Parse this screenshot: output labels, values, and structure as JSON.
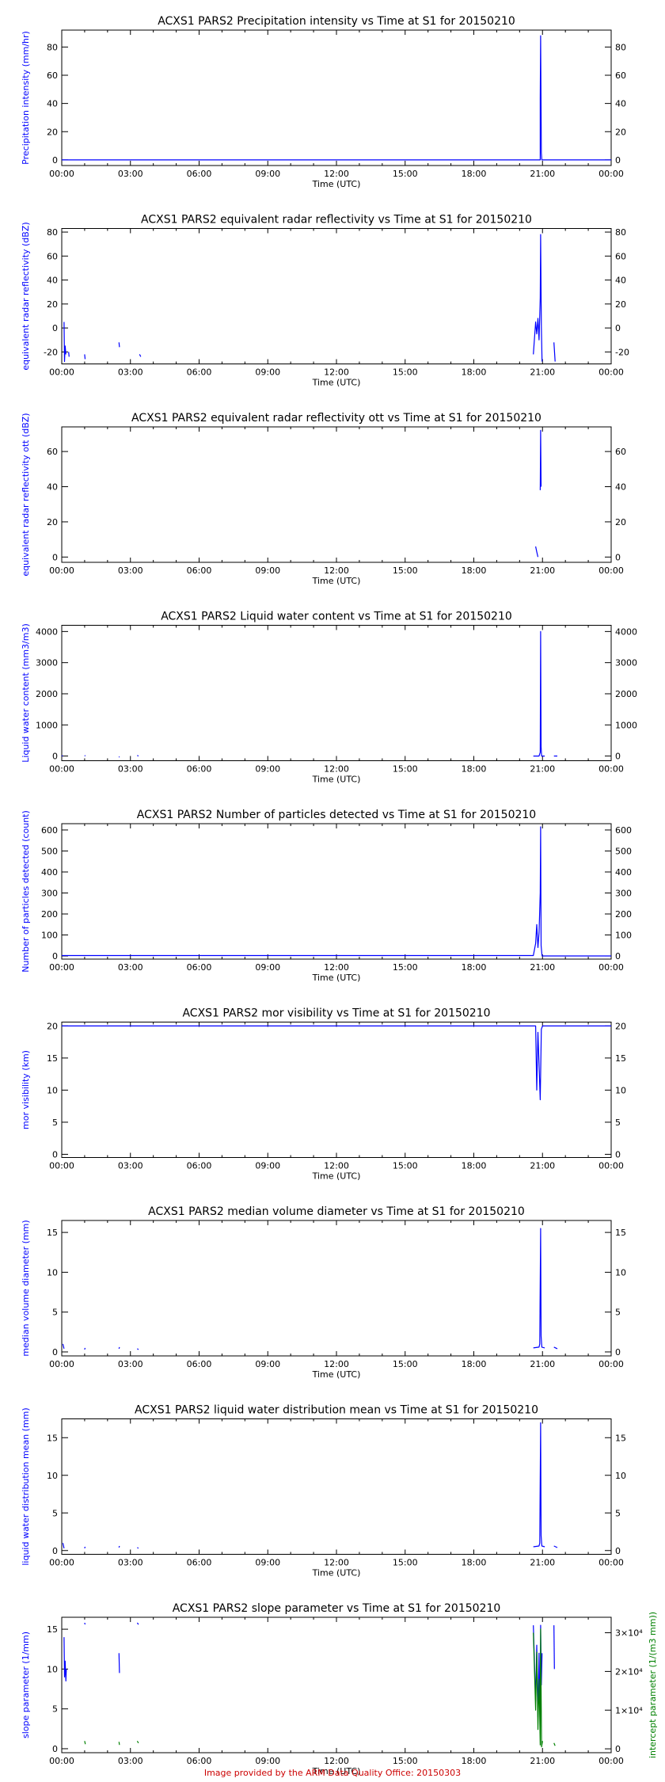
{
  "footer": "Image provided by the ARM Data Quality Office: 20150303",
  "colors": {
    "primary": "#0000ff",
    "secondary": "#008000",
    "footer": "#cc0000",
    "axis": "#000000"
  },
  "chart_data": [
    {
      "type": "line",
      "title": "ACXS1 PARS2 Precipitation intensity vs Time at S1 for 20150210",
      "xlabel": "Time (UTC)",
      "ylabel": "Precipitation intensity (mm/hr)",
      "xlim": [
        0,
        24
      ],
      "ylim": [
        -4,
        92
      ],
      "xticks": [
        "00:00",
        "03:00",
        "06:00",
        "09:00",
        "12:00",
        "15:00",
        "18:00",
        "21:00",
        "00:00"
      ],
      "yticks": [
        0,
        20,
        40,
        60,
        80
      ],
      "series": [
        {
          "segments": [
            [
              [
                0,
                0
              ],
              [
                20.8,
                0
              ],
              [
                20.9,
                0
              ],
              [
                20.9,
                44
              ],
              [
                20.92,
                88
              ],
              [
                20.95,
                5
              ],
              [
                20.97,
                0
              ],
              [
                24,
                0
              ]
            ]
          ]
        }
      ]
    },
    {
      "type": "line",
      "title": "ACXS1 PARS2 equivalent radar reflectivity vs Time at S1 for 20150210",
      "xlabel": "Time (UTC)",
      "ylabel": "equivalent radar reflectivity (dBZ)",
      "xlim": [
        0,
        24
      ],
      "ylim": [
        -30,
        83
      ],
      "xticks": [
        "00:00",
        "03:00",
        "06:00",
        "09:00",
        "12:00",
        "15:00",
        "18:00",
        "21:00",
        "00:00"
      ],
      "yticks": [
        -20,
        0,
        20,
        40,
        60,
        80
      ],
      "series": [
        {
          "segments": [
            [
              [
                0.1,
                5
              ],
              [
                0.12,
                -28
              ],
              [
                0.15,
                -15
              ],
              [
                0.18,
                -22
              ]
            ],
            [
              [
                0.3,
                -20
              ],
              [
                0.32,
                -24
              ]
            ],
            [
              [
                1.0,
                -22
              ],
              [
                1.02,
                -26
              ]
            ],
            [
              [
                2.5,
                -12
              ],
              [
                2.52,
                -16
              ]
            ],
            [
              [
                3.4,
                -22
              ],
              [
                3.45,
                -24
              ]
            ],
            [
              [
                20.6,
                -22
              ],
              [
                20.7,
                5
              ],
              [
                20.75,
                -5
              ],
              [
                20.8,
                8
              ],
              [
                20.85,
                -10
              ],
              [
                20.9,
                25
              ],
              [
                20.92,
                78
              ],
              [
                20.95,
                2
              ],
              [
                20.98,
                -28
              ]
            ],
            [
              [
                21.5,
                -12
              ],
              [
                21.55,
                -28
              ]
            ]
          ]
        }
      ]
    },
    {
      "type": "line",
      "title": "ACXS1 PARS2 equivalent radar reflectivity ott vs Time at S1 for 20150210",
      "xlabel": "Time (UTC)",
      "ylabel": "equivalent radar reflectivity ott (dBZ)",
      "xlim": [
        0,
        24
      ],
      "ylim": [
        -3,
        74
      ],
      "xticks": [
        "00:00",
        "03:00",
        "06:00",
        "09:00",
        "12:00",
        "15:00",
        "18:00",
        "21:00",
        "00:00"
      ],
      "yticks": [
        0,
        20,
        40,
        60
      ],
      "series": [
        {
          "segments": [
            [
              [
                20.7,
                6
              ],
              [
                20.75,
                3
              ],
              [
                20.8,
                0
              ]
            ],
            [
              [
                20.9,
                38
              ],
              [
                20.92,
                72
              ],
              [
                20.94,
                40
              ]
            ]
          ]
        }
      ]
    },
    {
      "type": "line",
      "title": "ACXS1 PARS2 Liquid water content vs Time at S1 for 20150210",
      "xlabel": "Time (UTC)",
      "ylabel": "Liquid water content (mm3/m3)",
      "xlim": [
        0,
        24
      ],
      "ylim": [
        -150,
        4200
      ],
      "xticks": [
        "00:00",
        "03:00",
        "06:00",
        "09:00",
        "12:00",
        "15:00",
        "18:00",
        "21:00",
        "00:00"
      ],
      "yticks": [
        0,
        1000,
        2000,
        3000,
        4000
      ],
      "series": [
        {
          "segments": [
            [
              [
                0.0,
                10
              ],
              [
                0.05,
                0
              ]
            ],
            [
              [
                1.0,
                20
              ],
              [
                1.03,
                0
              ]
            ],
            [
              [
                2.5,
                -40
              ],
              [
                2.52,
                -20
              ]
            ],
            [
              [
                3.3,
                20
              ],
              [
                3.35,
                0
              ]
            ],
            [
              [
                20.6,
                0
              ],
              [
                20.85,
                0
              ],
              [
                20.9,
                120
              ],
              [
                20.92,
                4000
              ],
              [
                20.94,
                300
              ],
              [
                20.96,
                0
              ],
              [
                21.1,
                0
              ]
            ],
            [
              [
                21.5,
                0
              ],
              [
                21.65,
                0
              ]
            ]
          ]
        }
      ]
    },
    {
      "type": "line",
      "title": "ACXS1 PARS2 Number of particles detected vs Time at S1 for 20150210",
      "xlabel": "Time (UTC)",
      "ylabel": "Number of particles detected (count)",
      "xlim": [
        0,
        24
      ],
      "ylim": [
        -15,
        630
      ],
      "xticks": [
        "00:00",
        "03:00",
        "06:00",
        "09:00",
        "12:00",
        "15:00",
        "18:00",
        "21:00",
        "00:00"
      ],
      "yticks": [
        0,
        100,
        200,
        300,
        400,
        500,
        600
      ],
      "series": [
        {
          "segments": [
            [
              [
                0,
                2
              ],
              [
                20.6,
                2
              ],
              [
                20.7,
                60
              ],
              [
                20.75,
                150
              ],
              [
                20.8,
                40
              ],
              [
                20.85,
                110
              ],
              [
                20.9,
                300
              ],
              [
                20.92,
                615
              ],
              [
                20.94,
                50
              ],
              [
                20.98,
                0
              ],
              [
                24,
                0
              ]
            ]
          ]
        }
      ]
    },
    {
      "type": "line",
      "title": "ACXS1 PARS2 mor visibility vs Time at S1 for 20150210",
      "xlabel": "Time (UTC)",
      "ylabel": "mor visibility (km)",
      "xlim": [
        0,
        24
      ],
      "ylim": [
        -0.5,
        20.6
      ],
      "xticks": [
        "00:00",
        "03:00",
        "06:00",
        "09:00",
        "12:00",
        "15:00",
        "18:00",
        "21:00",
        "00:00"
      ],
      "yticks": [
        0,
        5,
        10,
        15,
        20
      ],
      "series": [
        {
          "segments": [
            [
              [
                0,
                20
              ],
              [
                20.7,
                20
              ],
              [
                20.75,
                10
              ],
              [
                20.8,
                19
              ],
              [
                20.9,
                8.5
              ],
              [
                20.95,
                19.5
              ],
              [
                21.0,
                20
              ],
              [
                24,
                20
              ]
            ]
          ]
        }
      ]
    },
    {
      "type": "line",
      "title": "ACXS1 PARS2 median volume diameter vs Time at S1 for 20150210",
      "xlabel": "Time (UTC)",
      "ylabel": "median volume diameter (mm)",
      "xlim": [
        0,
        24
      ],
      "ylim": [
        -0.5,
        16.5
      ],
      "xticks": [
        "00:00",
        "03:00",
        "06:00",
        "09:00",
        "12:00",
        "15:00",
        "18:00",
        "21:00",
        "00:00"
      ],
      "yticks": [
        0,
        5,
        10,
        15
      ],
      "series": [
        {
          "segments": [
            [
              [
                0.05,
                1
              ],
              [
                0.1,
                0.4
              ]
            ],
            [
              [
                1.0,
                0.3
              ],
              [
                1.02,
                0.5
              ]
            ],
            [
              [
                2.5,
                0.4
              ],
              [
                2.52,
                0.6
              ]
            ],
            [
              [
                3.3,
                0.4
              ],
              [
                3.35,
                0.3
              ]
            ],
            [
              [
                20.6,
                0.5
              ],
              [
                20.85,
                0.6
              ],
              [
                20.88,
                1
              ],
              [
                20.92,
                15.5
              ],
              [
                20.94,
                2
              ],
              [
                20.97,
                0.6
              ],
              [
                21.1,
                0.5
              ]
            ],
            [
              [
                21.5,
                0.6
              ],
              [
                21.65,
                0.4
              ]
            ]
          ]
        }
      ]
    },
    {
      "type": "line",
      "title": "ACXS1 PARS2 liquid water distribution mean vs Time at S1 for 20150210",
      "xlabel": "Time (UTC)",
      "ylabel": "liquid water distribution mean (mm)",
      "xlim": [
        0,
        24
      ],
      "ylim": [
        -0.5,
        17.5
      ],
      "xticks": [
        "00:00",
        "03:00",
        "06:00",
        "09:00",
        "12:00",
        "15:00",
        "18:00",
        "21:00",
        "00:00"
      ],
      "yticks": [
        0,
        5,
        10,
        15
      ],
      "series": [
        {
          "segments": [
            [
              [
                0.05,
                1
              ],
              [
                0.1,
                0.3
              ]
            ],
            [
              [
                1.0,
                0.3
              ],
              [
                1.02,
                0.5
              ]
            ],
            [
              [
                2.5,
                0.4
              ],
              [
                2.52,
                0.6
              ]
            ],
            [
              [
                3.3,
                0.4
              ],
              [
                3.35,
                0.3
              ]
            ],
            [
              [
                20.6,
                0.5
              ],
              [
                20.85,
                0.6
              ],
              [
                20.88,
                1
              ],
              [
                20.92,
                17
              ],
              [
                20.94,
                2
              ],
              [
                20.97,
                0.6
              ],
              [
                21.1,
                0.5
              ]
            ],
            [
              [
                21.5,
                0.6
              ],
              [
                21.65,
                0.4
              ]
            ]
          ]
        }
      ]
    },
    {
      "type": "line",
      "title": "ACXS1 PARS2 slope parameter vs Time at S1 for 20150210",
      "xlabel": "Time (UTC)",
      "ylabel": "slope parameter (1/mm)",
      "y2label": "intercept parameter (1/(m3 mm))",
      "xlim": [
        0,
        24
      ],
      "ylim": [
        -0.5,
        16.5
      ],
      "y2lim": [
        -1000,
        34000
      ],
      "xticks": [
        "00:00",
        "03:00",
        "06:00",
        "09:00",
        "12:00",
        "15:00",
        "18:00",
        "21:00",
        "00:00"
      ],
      "yticks": [
        0,
        5,
        10,
        15
      ],
      "y2ticks": [
        {
          "value": 0,
          "label": "0"
        },
        {
          "value": 10000,
          "label": "1×10⁴"
        },
        {
          "value": 20000,
          "label": "2×10⁴"
        },
        {
          "value": 30000,
          "label": "3×10⁴"
        }
      ],
      "series": [
        {
          "segments": [
            [
              [
                0.1,
                14
              ],
              [
                0.12,
                9
              ],
              [
                0.15,
                11
              ],
              [
                0.18,
                8.5
              ],
              [
                0.2,
                10
              ]
            ],
            [
              [
                1.0,
                15.8
              ],
              [
                1.02,
                15.6
              ]
            ],
            [
              [
                2.5,
                12
              ],
              [
                2.52,
                9.5
              ]
            ],
            [
              [
                3.3,
                15.8
              ],
              [
                3.35,
                15.6
              ]
            ],
            [
              [
                20.6,
                15.5
              ],
              [
                20.7,
                6
              ],
              [
                20.75,
                13
              ],
              [
                20.8,
                4
              ],
              [
                20.85,
                12
              ],
              [
                20.9,
                2
              ],
              [
                20.92,
                15.5
              ],
              [
                20.95,
                8
              ],
              [
                20.98,
                12
              ]
            ],
            [
              [
                21.5,
                15.5
              ],
              [
                21.52,
                10
              ]
            ]
          ]
        },
        {
          "axis": "y2",
          "segments": [
            [
              [
                1.0,
                2000
              ],
              [
                1.03,
                1200
              ]
            ],
            [
              [
                2.5,
                1800
              ],
              [
                2.52,
                1000
              ]
            ],
            [
              [
                3.3,
                2000
              ],
              [
                3.35,
                1500
              ]
            ],
            [
              [
                20.6,
                30000
              ],
              [
                20.7,
                10000
              ],
              [
                20.75,
                25000
              ],
              [
                20.8,
                5000
              ],
              [
                20.85,
                18000
              ],
              [
                20.9,
                1000
              ],
              [
                20.92,
                31000
              ],
              [
                20.96,
                500
              ],
              [
                21.0,
                2000
              ]
            ],
            [
              [
                21.5,
                1500
              ],
              [
                21.55,
                800
              ]
            ]
          ]
        }
      ]
    }
  ]
}
